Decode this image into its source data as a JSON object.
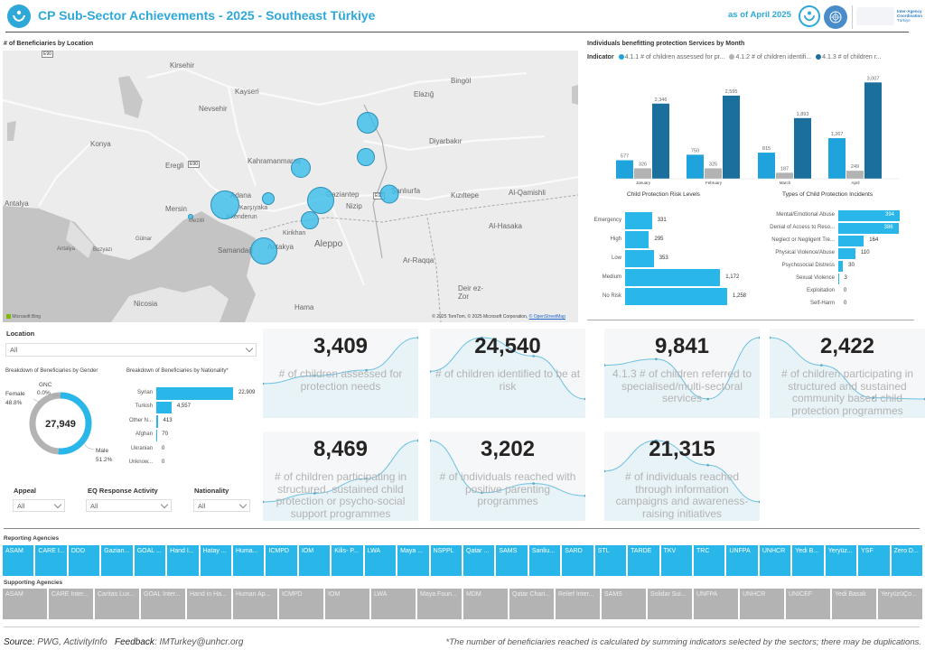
{
  "header": {
    "title": "CP Sub-Sector Achievements - 2025 - Southeast Türkiye",
    "date": "as of April 2025",
    "iac_text": [
      "Inter-Agency",
      "Coordination",
      "Türkiye"
    ]
  },
  "map": {
    "title": "# of Beneficiaries by Location",
    "credit": "© 2025 TomTom, © 2025 Microsoft Corporation,",
    "credit_link": "© OpenStreetMap",
    "bing": "Microsoft Bing",
    "labels": [
      {
        "text": "Kirsehir",
        "name": "kirsehir"
      },
      {
        "text": "Kayseri",
        "name": "kayseri"
      },
      {
        "text": "Nevsehir",
        "name": "nevsehir"
      },
      {
        "text": "Konya",
        "name": "konya"
      },
      {
        "text": "Eregli",
        "name": "eregli"
      },
      {
        "text": "Kahramanmaraş",
        "name": "kahramanmaras"
      },
      {
        "text": "Antalya",
        "name": "antalya"
      },
      {
        "text": "Adana",
        "name": "adana"
      },
      {
        "text": "Mersin",
        "name": "mersin"
      },
      {
        "text": "Karşıyaka",
        "name": "karsiyaka"
      },
      {
        "text": "Iskenderun",
        "name": "iskenderun"
      },
      {
        "text": "Mezitli",
        "name": "mezitli"
      },
      {
        "text": "Samandağ",
        "name": "samandag"
      },
      {
        "text": "Antakya",
        "name": "antakya"
      },
      {
        "text": "Kirikhan",
        "name": "kirikhan"
      },
      {
        "text": "Aleppo",
        "name": "aleppo"
      },
      {
        "text": "Gaziantep",
        "name": "gaziantep"
      },
      {
        "text": "Nizip",
        "name": "nizip"
      },
      {
        "text": "Şanlıurfa",
        "name": "sanliurfa"
      },
      {
        "text": "Elazığ",
        "name": "elazig"
      },
      {
        "text": "Bingöl",
        "name": "bingol"
      },
      {
        "text": "Diyarbakır",
        "name": "diyarbakir"
      },
      {
        "text": "Kızıltepe",
        "name": "kiziltepe"
      },
      {
        "text": "Al-Qamishli",
        "name": "al-qamishli"
      },
      {
        "text": "Al-Hasaka",
        "name": "al-hasaka"
      },
      {
        "text": "Ar-Raqqa",
        "name": "ar-raqqa"
      },
      {
        "text": "Deir ez-Zor",
        "name": "deir-ez-zor"
      },
      {
        "text": "Hama",
        "name": "hama"
      },
      {
        "text": "Nicosia",
        "name": "nicosia"
      },
      {
        "text": "Antalya",
        "name": "antalya-2"
      },
      {
        "text": "Bozyazı",
        "name": "bozyazi"
      },
      {
        "text": "Gülnar",
        "name": "gulnar"
      }
    ],
    "road_badges": [
      "E90",
      "E90",
      "E90"
    ]
  },
  "monthly": {
    "title": "Individuals benefitting protection Services by Month",
    "legend_label": "Indicator",
    "colors": [
      "#1fa3dc",
      "#b3b3b3",
      "#1b6f9c"
    ]
  },
  "chart_data": [
    {
      "type": "bar",
      "title": "Individuals benefitting protection Services by Month",
      "categories": [
        "January",
        "February",
        "March",
        "April"
      ],
      "series": [
        {
          "name": "4.1.1 # of children assessed for pr...",
          "values": [
            577,
            750,
            815,
            1267
          ]
        },
        {
          "name": "4.1.2 # of children identifi...",
          "values": [
            326,
            325,
            187,
            249
          ]
        },
        {
          "name": "4.1.3 # of children r...",
          "values": [
            2346,
            2595,
            1893,
            3007
          ]
        }
      ],
      "data_labels": [
        [
          "577",
          "750",
          "815",
          "1,267"
        ],
        [
          "326",
          "325",
          "187",
          "249"
        ],
        [
          "2,346",
          "2,595",
          "1,893",
          "3,007"
        ]
      ],
      "legend": "top-left"
    },
    {
      "type": "bar",
      "orientation": "horizontal",
      "title": "Child Protection Risk Levels",
      "categories": [
        "Emergency",
        "High",
        "Low",
        "Medium",
        "No Risk"
      ],
      "values": [
        331,
        295,
        353,
        1172,
        1258
      ],
      "labels": [
        "331",
        "295",
        "353",
        "1,172",
        "1,258"
      ]
    },
    {
      "type": "bar",
      "orientation": "horizontal",
      "title": "Types of Child Protection Incidents",
      "categories": [
        "Mental/Emotional Abuse",
        "Denial of Access to Reso...",
        "Neglect or Negligent Tre...",
        "Physical Violence/Abuse",
        "Psychosocial Distress",
        "Sexual Violence",
        "Exploitation",
        "Self-Harm"
      ],
      "values": [
        394,
        386,
        164,
        110,
        30,
        3,
        0,
        0
      ]
    },
    {
      "type": "pie",
      "title": "Breakdown of Beneficiaries by Gender",
      "center_label": "27,949",
      "categories": [
        "Female",
        "GNC",
        "Male"
      ],
      "values": [
        48.8,
        0.0,
        51.2
      ],
      "labels": [
        "48.8%",
        "0.0%",
        "51.2%"
      ]
    },
    {
      "type": "bar",
      "orientation": "horizontal",
      "title": "Breakdown of Beneficiaries by Nationality*",
      "categories": [
        "Syrian",
        "Turkish",
        "Other N...",
        "Afghan",
        "Ukranian",
        "Unknow..."
      ],
      "values": [
        22909,
        4557,
        413,
        70,
        0,
        0
      ],
      "labels": [
        "22,909",
        "4,557",
        "413",
        "70",
        "0",
        "0"
      ]
    }
  ],
  "filters": {
    "location": {
      "label": "Location",
      "value": "All"
    },
    "appeal": {
      "label": "Appeal",
      "value": "All"
    },
    "eq_response": {
      "label": "EQ Response Activity",
      "value": "All"
    },
    "nationality": {
      "label": "Nationality",
      "value": "All"
    }
  },
  "kpis": [
    {
      "value": "3,409",
      "desc": "# of children assessed for protection needs",
      "trend": [
        0.25,
        0.38,
        0.47,
        1.0
      ]
    },
    {
      "value": "24,540",
      "desc": "# of children identified to be at risk",
      "trend": [
        0.45,
        1.0,
        0.7,
        0.0
      ]
    },
    {
      "value": "9,841",
      "desc": "4.1.3 # of children referred to specialised/multi-sectoral services",
      "trend": [
        0.55,
        0.65,
        0.0,
        1.0
      ]
    },
    {
      "value": "2,422",
      "desc": "# of children participating in structured and sustained community based child protection programmes",
      "trend": [
        1.0,
        0.55,
        0.02,
        0.0
      ]
    },
    {
      "value": "8,469",
      "desc": "# of children participating in structured, sustained child protection or psycho-social support programmes",
      "trend": [
        0.0,
        0.14,
        0.38,
        1.0
      ]
    },
    {
      "value": "3,202",
      "desc": "# of individuals reached with positive parenting programmes",
      "trend": [
        1.0,
        0.15,
        0.3,
        0.1
      ]
    },
    {
      "value": "21,315",
      "desc": "# of individuals reached through information campaigns and awareness-raising initiatives",
      "trend": [
        0.5,
        1.0,
        0.6,
        0.0
      ]
    }
  ],
  "reporting": {
    "title": "Reporting Agencies",
    "items": [
      "ASAM",
      "CARE I...",
      "DDD",
      "Gazian...",
      "GOAL ...",
      "Hand I...",
      "Hatay ...",
      "Huma...",
      "ICMPD",
      "IOM",
      "Kilis- P...",
      "LWA",
      "Maya ...",
      "NSPPL",
      "Qatar ...",
      "SAMS",
      "Sanliu...",
      "SARD",
      "STL",
      "TARDE",
      "TKV",
      "TRC",
      "UNFPA",
      "UNHCR",
      "Yedi B...",
      "Yeryüz...",
      "YSF",
      "Zero D..."
    ]
  },
  "supporting": {
    "title": "Supporting Agencies",
    "items": [
      "ASAM",
      "CARE Inter...",
      "Caritas Lux...",
      "GOAL Inter...",
      "Hand in Ha...",
      "Human Ap...",
      "ICMPD",
      "IOM",
      "LWA",
      "Maya Foun...",
      "MDM",
      "Qatar Chari...",
      "Relief Inter...",
      "SAMS",
      "Solidar Sui...",
      "UNFPA",
      "UNHCR",
      "UNICEF",
      "Yedi Basak",
      "YeryüzüÇo..."
    ]
  },
  "footer": {
    "source_label": "Source",
    "source_value": ": PWG, ActivityInfo",
    "feedback_label": "Feedback",
    "feedback_value": ": IMTurkey@unhcr.org",
    "note": "*The number of beneficiaries reached is calculated by summing indicators selected by the sectors; there may be duplications."
  }
}
